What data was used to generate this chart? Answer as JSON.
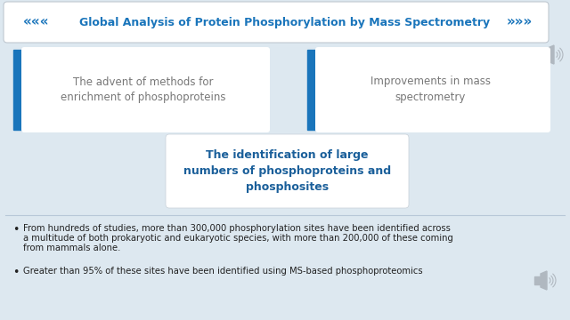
{
  "bg_color": "#dde8f0",
  "title_text": "Global Analysis of Protein Phosphorylation by Mass Spectrometry",
  "title_color": "#1a6fa8",
  "box1_text": "The advent of methods for\nenrichment of phosphoproteins",
  "box2_text": "Improvements in mass\nspectrometry",
  "box3_text": "The identification of large\nnumbers of phosphoproteins and\nphosphosites",
  "box_text_color": "#777777",
  "box3_text_color": "#1a5f9a",
  "blue_accent": "#1a75bb",
  "bullet_color": "#222222",
  "bullet1_line1": "From hundreds of studies, more than 300,000 phosphorylation sites have been identified across",
  "bullet1_line2": "a multitude of both prokaryotic and eukaryotic species, with more than 200,000 of these coming",
  "bullet1_line3": "from mammals alone.",
  "bullet2": "Greater than 95% of these sites have been identified using MS-based phosphoproteomics"
}
